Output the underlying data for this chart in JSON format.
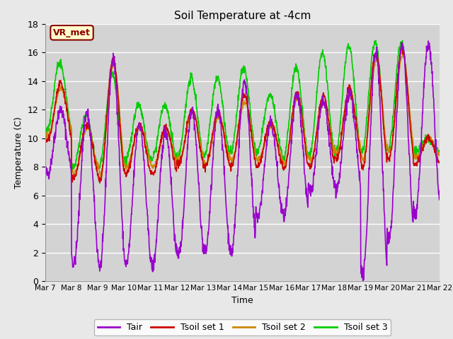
{
  "title": "Soil Temperature at -4cm",
  "xlabel": "Time",
  "ylabel": "Temperature (C)",
  "ylim": [
    0,
    18
  ],
  "background_color": "#e8e8e8",
  "plot_bg_color": "#d3d3d3",
  "grid_color": "#ffffff",
  "colors": {
    "Tair": "#9900cc",
    "Tsoil1": "#cc0000",
    "Tsoil2": "#cc8800",
    "Tsoil3": "#00cc00"
  },
  "legend_labels": [
    "Tair",
    "Tsoil set 1",
    "Tsoil set 2",
    "Tsoil set 3"
  ],
  "annotation_text": "VR_met",
  "annotation_color": "#8B0000",
  "annotation_bg": "#ffffcc",
  "tick_labels": [
    "Mar 7",
    "Mar 8",
    "Mar 9",
    "Mar 10",
    "Mar 11",
    "Mar 12",
    "Mar 13",
    "Mar 14",
    "Mar 15",
    "Mar 16",
    "Mar 17",
    "Mar 18",
    "Mar 19",
    "Mar 20",
    "Mar 21",
    "Mar 22"
  ],
  "n_days": 15,
  "pts_per_day": 96
}
